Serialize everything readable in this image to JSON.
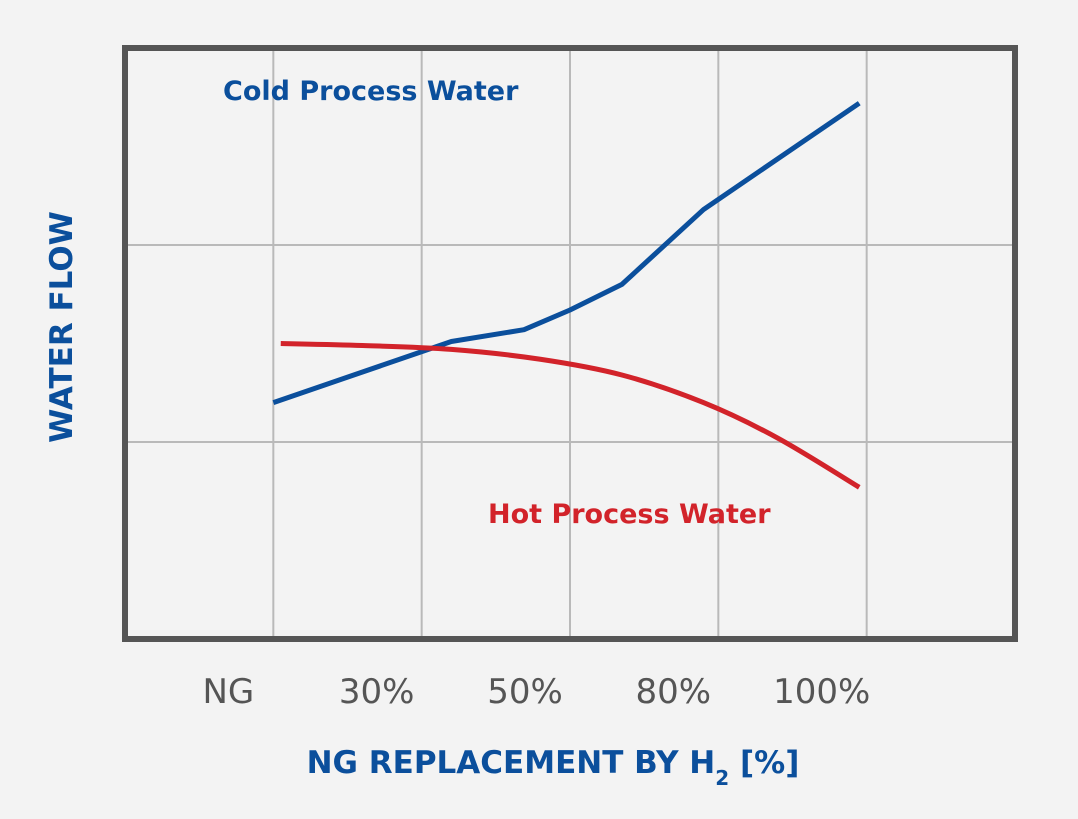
{
  "colors": {
    "background": "#f3f3f3",
    "frame": "#555555",
    "grid": "#b9b9b9",
    "axis_title": "#0b4f9c",
    "cold": "#0b4f9c",
    "hot": "#d2232a"
  },
  "chart_data": {
    "type": "line",
    "title": "",
    "xlabel": {
      "prefix": "NG REPLACEMENT BY H",
      "subscript": "2",
      "suffix": " [%]"
    },
    "ylabel": "WATER FLOW",
    "categories": [
      "NG",
      "30%",
      "50%",
      "80%",
      "100%"
    ],
    "x_domain": [
      -1,
      5
    ],
    "ylim": [
      0,
      3
    ],
    "y_ticks": [
      1,
      2
    ],
    "y_tick_labels": false,
    "grid": true,
    "series": [
      {
        "name": "Cold Process Water",
        "color_key": "cold",
        "points": [
          [
            0,
            1.2
          ],
          [
            1.2,
            1.51
          ],
          [
            1.69,
            1.57
          ],
          [
            2,
            1.67
          ],
          [
            2.35,
            1.8
          ],
          [
            2.9,
            2.18
          ],
          [
            3.95,
            2.72
          ]
        ]
      },
      {
        "name": "Hot Process Water",
        "color_key": "hot",
        "points": [
          [
            0.05,
            1.5
          ],
          [
            0.6,
            1.49
          ],
          [
            1.2,
            1.47
          ],
          [
            1.8,
            1.42
          ],
          [
            2.35,
            1.34
          ],
          [
            2.9,
            1.2
          ],
          [
            3.4,
            1.02
          ],
          [
            3.95,
            0.77
          ]
        ]
      }
    ]
  }
}
